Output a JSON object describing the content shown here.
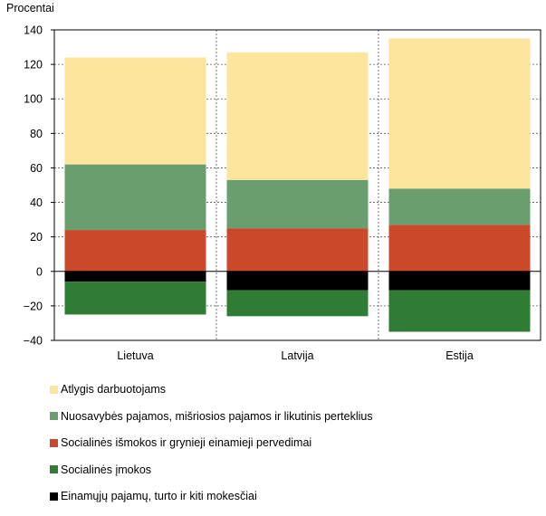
{
  "chart_data": {
    "type": "bar",
    "stacked": true,
    "ylabel": "Procentai",
    "ylim": [
      -40,
      140
    ],
    "yticks": [
      140,
      120,
      100,
      80,
      60,
      40,
      20,
      0,
      -20,
      -40
    ],
    "ytick_labels": [
      "140",
      "120",
      "100",
      "80",
      "60",
      "40",
      "20",
      "0",
      "−20",
      "−40"
    ],
    "grid": true,
    "legend_position": "bottom",
    "categories": [
      "Lietuva",
      "Latvija",
      "Estija"
    ],
    "series": [
      {
        "name": "Atlygis darbuotojams",
        "color": "#fde59d",
        "values": [
          62,
          74,
          87
        ]
      },
      {
        "name": "Nuosavybės pajamos, mišriosios pajamos ir likutinis perteklius",
        "color": "#6b9e6e",
        "values": [
          38,
          28,
          21
        ]
      },
      {
        "name": "Socialinės išmokos ir grynieji einamieji pervedimai",
        "color": "#c9492a",
        "values": [
          24,
          25,
          27
        ]
      },
      {
        "name": "Socialinės įmokos",
        "color": "#2f7d35",
        "values": [
          -19,
          -15,
          -24
        ]
      },
      {
        "name": "Einamųjų pajamų, turto ir kiti mokesčiai",
        "color": "#000000",
        "values": [
          -6,
          -11,
          -11
        ]
      }
    ]
  }
}
